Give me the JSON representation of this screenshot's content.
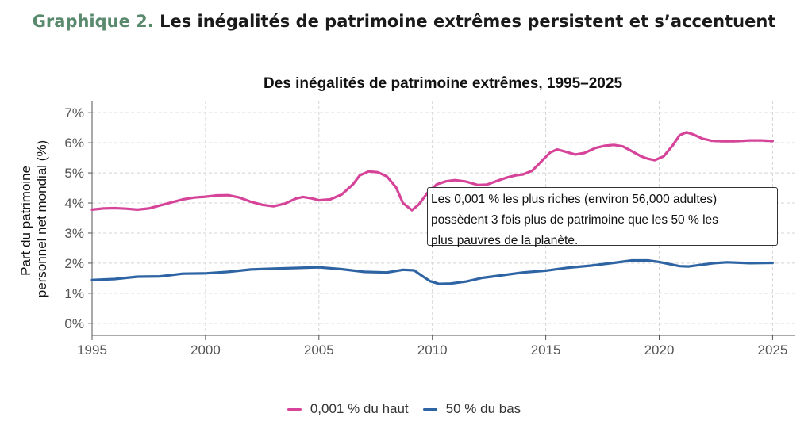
{
  "figure_heading": {
    "lead": "Graphique 2.",
    "text": "Les inégalités de patrimoine extrêmes persistent et s’accentuent"
  },
  "chart_data": {
    "type": "line",
    "title": "Des inégalités de patrimoine extrêmes, 1995–2025",
    "ylabel_line1": "Part du patrimoine",
    "ylabel_line2": "personnel net mondial (%)",
    "xlabel": "",
    "xlim": [
      1995,
      2026
    ],
    "ylim": [
      -0.4,
      7.4
    ],
    "x_ticks": [
      1995,
      2000,
      2005,
      2010,
      2015,
      2020,
      2025
    ],
    "y_ticks": [
      0,
      1,
      2,
      3,
      4,
      5,
      6,
      7
    ],
    "y_tick_labels": [
      "0%",
      "1%",
      "2%",
      "3%",
      "4%",
      "5%",
      "6%",
      "7%"
    ],
    "grid": true,
    "legend_position": "bottom",
    "series": [
      {
        "name": "0,001 % du haut",
        "color": "#d6449a",
        "points": [
          [
            1995,
            3.78
          ],
          [
            1995.5,
            3.82
          ],
          [
            1996,
            3.83
          ],
          [
            1996.5,
            3.81
          ],
          [
            1997,
            3.78
          ],
          [
            1997.5,
            3.82
          ],
          [
            1998,
            3.92
          ],
          [
            1998.5,
            4.02
          ],
          [
            1999,
            4.12
          ],
          [
            1999.5,
            4.18
          ],
          [
            2000,
            4.21
          ],
          [
            2000.5,
            4.25
          ],
          [
            2001,
            4.26
          ],
          [
            2001.5,
            4.18
          ],
          [
            2002,
            4.04
          ],
          [
            2002.5,
            3.94
          ],
          [
            2003,
            3.89
          ],
          [
            2003.5,
            3.98
          ],
          [
            2004,
            4.15
          ],
          [
            2004.3,
            4.2
          ],
          [
            2004.7,
            4.15
          ],
          [
            2005,
            4.09
          ],
          [
            2005.5,
            4.12
          ],
          [
            2006,
            4.28
          ],
          [
            2006.5,
            4.62
          ],
          [
            2006.8,
            4.92
          ],
          [
            2007.2,
            5.05
          ],
          [
            2007.6,
            5.02
          ],
          [
            2008,
            4.88
          ],
          [
            2008.4,
            4.52
          ],
          [
            2008.7,
            4.0
          ],
          [
            2009.1,
            3.76
          ],
          [
            2009.4,
            3.95
          ],
          [
            2009.8,
            4.35
          ],
          [
            2010.2,
            4.62
          ],
          [
            2010.6,
            4.72
          ],
          [
            2011,
            4.76
          ],
          [
            2011.5,
            4.71
          ],
          [
            2012,
            4.6
          ],
          [
            2012.4,
            4.61
          ],
          [
            2012.8,
            4.72
          ],
          [
            2013.3,
            4.85
          ],
          [
            2013.7,
            4.92
          ],
          [
            2014,
            4.95
          ],
          [
            2014.4,
            5.07
          ],
          [
            2014.8,
            5.38
          ],
          [
            2015.2,
            5.68
          ],
          [
            2015.5,
            5.78
          ],
          [
            2015.8,
            5.72
          ],
          [
            2016.3,
            5.61
          ],
          [
            2016.7,
            5.66
          ],
          [
            2017.2,
            5.83
          ],
          [
            2017.6,
            5.9
          ],
          [
            2018,
            5.93
          ],
          [
            2018.4,
            5.88
          ],
          [
            2018.8,
            5.72
          ],
          [
            2019.2,
            5.55
          ],
          [
            2019.5,
            5.47
          ],
          [
            2019.8,
            5.42
          ],
          [
            2020.2,
            5.55
          ],
          [
            2020.6,
            5.92
          ],
          [
            2020.9,
            6.25
          ],
          [
            2021.2,
            6.35
          ],
          [
            2021.5,
            6.28
          ],
          [
            2021.9,
            6.14
          ],
          [
            2022.3,
            6.07
          ],
          [
            2022.8,
            6.05
          ],
          [
            2023.3,
            6.05
          ],
          [
            2024,
            6.08
          ],
          [
            2024.5,
            6.08
          ],
          [
            2025,
            6.06
          ]
        ]
      },
      {
        "name": "50 % du bas",
        "color": "#2e64a3",
        "points": [
          [
            1995,
            1.44
          ],
          [
            1996,
            1.47
          ],
          [
            1997,
            1.55
          ],
          [
            1998,
            1.56
          ],
          [
            1999,
            1.65
          ],
          [
            2000,
            1.66
          ],
          [
            2001,
            1.71
          ],
          [
            2002,
            1.79
          ],
          [
            2003,
            1.82
          ],
          [
            2004,
            1.84
          ],
          [
            2005,
            1.86
          ],
          [
            2006,
            1.8
          ],
          [
            2007,
            1.71
          ],
          [
            2008,
            1.69
          ],
          [
            2008.7,
            1.78
          ],
          [
            2009.2,
            1.76
          ],
          [
            2009.5,
            1.6
          ],
          [
            2009.9,
            1.4
          ],
          [
            2010.3,
            1.31
          ],
          [
            2010.8,
            1.32
          ],
          [
            2011.5,
            1.39
          ],
          [
            2012.2,
            1.51
          ],
          [
            2013,
            1.59
          ],
          [
            2014,
            1.69
          ],
          [
            2015,
            1.75
          ],
          [
            2016,
            1.85
          ],
          [
            2017,
            1.92
          ],
          [
            2018,
            2.01
          ],
          [
            2018.8,
            2.09
          ],
          [
            2019.5,
            2.09
          ],
          [
            2020,
            2.04
          ],
          [
            2020.9,
            1.9
          ],
          [
            2021.3,
            1.89
          ],
          [
            2021.8,
            1.94
          ],
          [
            2022.4,
            2.0
          ],
          [
            2023,
            2.03
          ],
          [
            2024,
            2.0
          ],
          [
            2025,
            2.01
          ]
        ]
      }
    ],
    "annotation": {
      "lines": [
        "Les 0,001 % les plus riches (environ 56,000 adultes)",
        " possèdent 3 fois plus de patrimoine que les 50 % les",
        "plus pauvres de la planète."
      ]
    }
  }
}
